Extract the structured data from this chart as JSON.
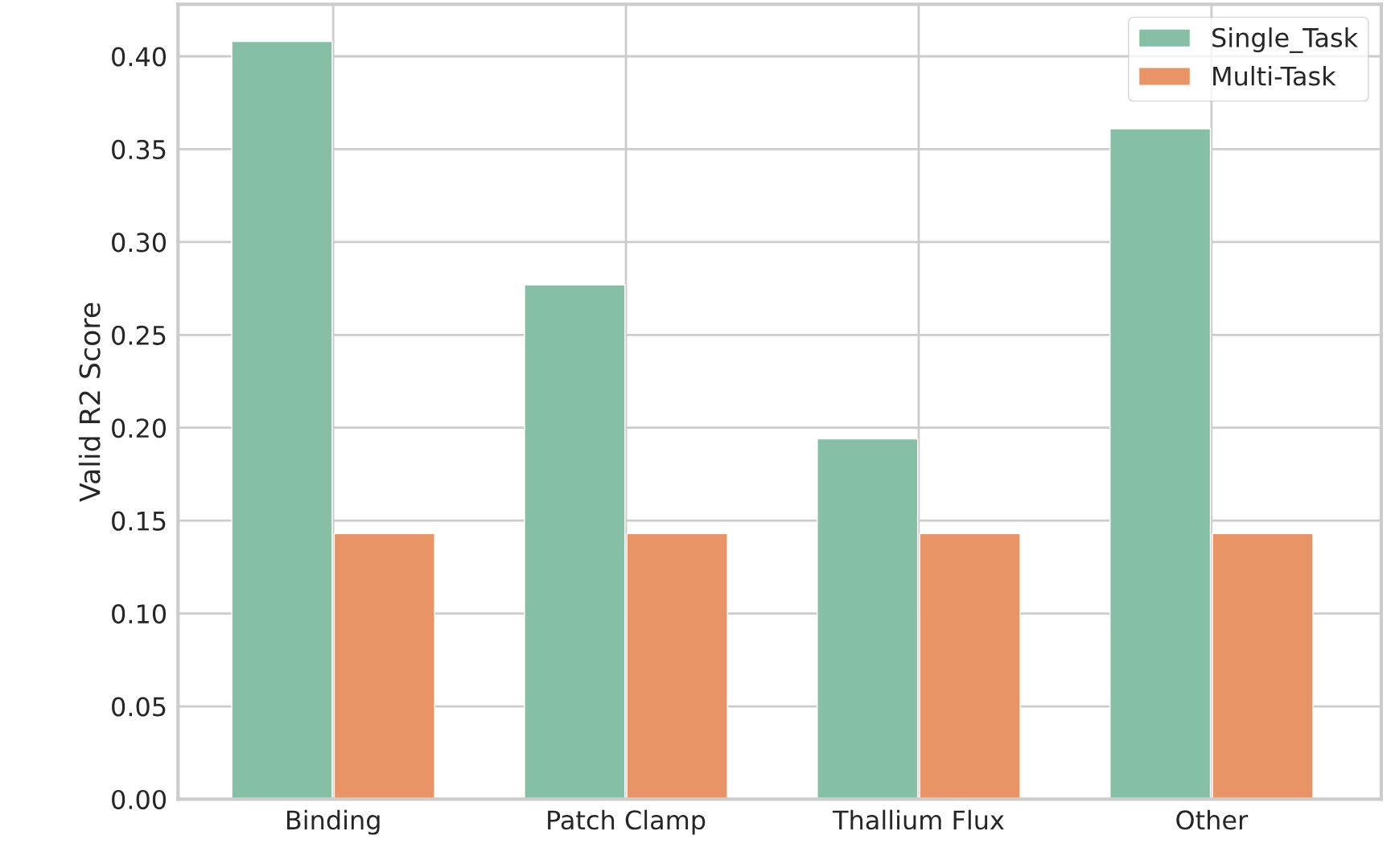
{
  "chart_data": {
    "type": "bar",
    "ylabel": "Valid R2 Score",
    "categories": [
      "Binding",
      "Patch Clamp",
      "Thallium Flux",
      "Other"
    ],
    "series": [
      {
        "name": "Single_Task",
        "color": "#85c0a6",
        "values": [
          0.408,
          0.277,
          0.194,
          0.361
        ]
      },
      {
        "name": "Multi-Task",
        "color": "#e89467",
        "values": [
          0.143,
          0.143,
          0.143,
          0.143
        ]
      }
    ],
    "ylim": [
      0,
      0.428
    ],
    "yticks": [
      {
        "value": 0,
        "label": "0.00"
      },
      0.05,
      {
        "value": 0.1,
        "label": "0.10"
      },
      0.15,
      {
        "value": 0.2,
        "label": "0.20"
      },
      0.25,
      {
        "value": 0.3,
        "label": "0.30"
      },
      0.35,
      {
        "value": 0.4,
        "label": "0.40"
      }
    ],
    "grid": true,
    "legend": "top right"
  }
}
